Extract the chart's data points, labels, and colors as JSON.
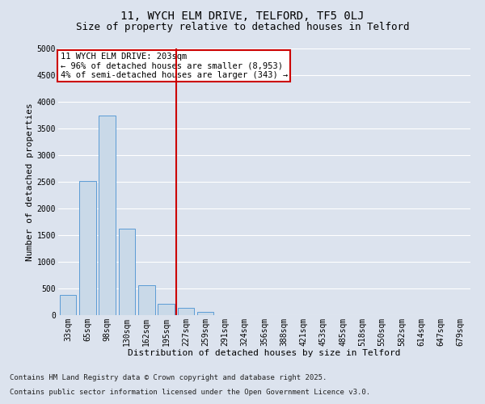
{
  "title1": "11, WYCH ELM DRIVE, TELFORD, TF5 0LJ",
  "title2": "Size of property relative to detached houses in Telford",
  "xlabel": "Distribution of detached houses by size in Telford",
  "ylabel": "Number of detached properties",
  "categories": [
    "33sqm",
    "65sqm",
    "98sqm",
    "130sqm",
    "162sqm",
    "195sqm",
    "227sqm",
    "259sqm",
    "291sqm",
    "324sqm",
    "356sqm",
    "388sqm",
    "421sqm",
    "453sqm",
    "485sqm",
    "518sqm",
    "550sqm",
    "582sqm",
    "614sqm",
    "647sqm",
    "679sqm"
  ],
  "values": [
    380,
    2520,
    3750,
    1620,
    560,
    210,
    130,
    60,
    0,
    0,
    0,
    0,
    0,
    0,
    0,
    0,
    0,
    0,
    0,
    0,
    0
  ],
  "bar_color": "#c9d9e8",
  "bar_edge_color": "#5b9bd5",
  "vline_color": "#cc0000",
  "annotation_text": "11 WYCH ELM DRIVE: 203sqm\n← 96% of detached houses are smaller (8,953)\n4% of semi-detached houses are larger (343) →",
  "annotation_box_color": "#cc0000",
  "ylim": [
    0,
    5000
  ],
  "yticks": [
    0,
    500,
    1000,
    1500,
    2000,
    2500,
    3000,
    3500,
    4000,
    4500,
    5000
  ],
  "footer1": "Contains HM Land Registry data © Crown copyright and database right 2025.",
  "footer2": "Contains public sector information licensed under the Open Government Licence v3.0.",
  "bg_color": "#dce3ee",
  "plot_bg_color": "#dce3ee",
  "grid_color": "#ffffff",
  "title1_fontsize": 10,
  "title2_fontsize": 9,
  "xlabel_fontsize": 8,
  "ylabel_fontsize": 8,
  "tick_fontsize": 7,
  "footer_fontsize": 6.5,
  "annotation_fontsize": 7.5
}
